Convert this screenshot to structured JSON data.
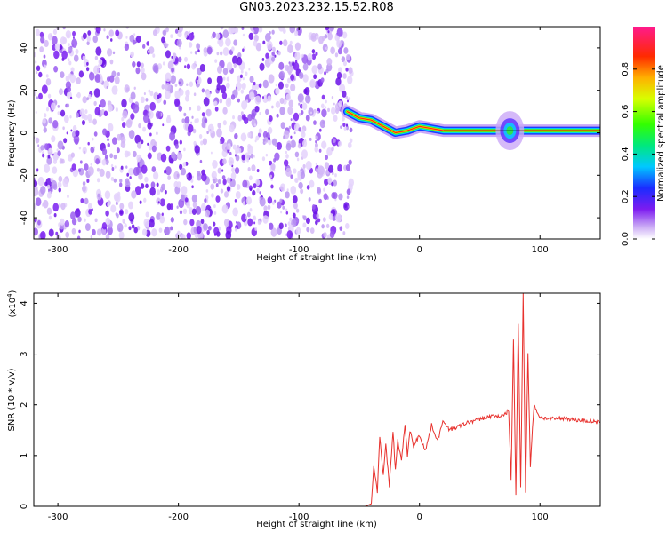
{
  "title": "GN03.2023.232.15.52.R08",
  "chart_data": [
    {
      "type": "heatmap",
      "xlabel": "Height of straight line (km)",
      "ylabel": "Frequency (Hz)",
      "xlim": [
        -320,
        150
      ],
      "ylim": [
        -50,
        50
      ],
      "x_ticks": [
        -300,
        -200,
        -100,
        0,
        100
      ],
      "y_ticks": [
        -40,
        -20,
        0,
        20,
        40
      ],
      "noise_region_x": [
        -320,
        -60
      ],
      "ridge": [
        {
          "x": -60,
          "y": 10
        },
        {
          "x": -50,
          "y": 7
        },
        {
          "x": -40,
          "y": 6
        },
        {
          "x": -30,
          "y": 3
        },
        {
          "x": -20,
          "y": 0
        },
        {
          "x": -10,
          "y": 1
        },
        {
          "x": 0,
          "y": 3
        },
        {
          "x": 10,
          "y": 2
        },
        {
          "x": 20,
          "y": 1
        },
        {
          "x": 40,
          "y": 1
        },
        {
          "x": 60,
          "y": 1
        },
        {
          "x": 70,
          "y": 1
        },
        {
          "x": 90,
          "y": 1
        },
        {
          "x": 120,
          "y": 1
        },
        {
          "x": 150,
          "y": 1
        }
      ],
      "colorbar": {
        "label": "Normalized spectral amplitude",
        "range": [
          0.0,
          1.0
        ],
        "ticks": [
          "0.0",
          "0.2",
          "0.4",
          "0.6",
          "0.8"
        ]
      }
    },
    {
      "type": "line",
      "xlabel": "Height of straight line (km)",
      "ylabel": "SNR (10 * v/v)",
      "scale_label": "(x10",
      "scale_exp": "4",
      "xlim": [
        -320,
        150
      ],
      "ylim": [
        0,
        4.2
      ],
      "x_ticks": [
        -300,
        -200,
        -100,
        0,
        100
      ],
      "y_ticks": [
        0,
        1,
        2,
        3,
        4
      ],
      "color": "#e8322e",
      "series": [
        {
          "x": [
            -320,
            -100,
            -45,
            -40,
            -38,
            -35,
            -33,
            -30,
            -28,
            -25,
            -22,
            -20,
            -18,
            -15,
            -12,
            -10,
            -8,
            -5,
            0,
            5,
            10,
            15,
            20,
            25,
            30,
            40,
            50,
            60,
            70,
            74,
            76,
            78,
            80,
            82,
            84,
            86,
            88,
            90,
            92,
            95,
            100,
            110,
            120,
            130,
            140,
            150
          ],
          "y": [
            0.0,
            0.0,
            0.0,
            0.05,
            0.8,
            0.3,
            1.4,
            0.6,
            1.2,
            0.4,
            1.5,
            0.7,
            1.3,
            0.9,
            1.6,
            1.0,
            1.5,
            1.2,
            1.4,
            1.1,
            1.6,
            1.3,
            1.7,
            1.5,
            1.55,
            1.65,
            1.72,
            1.78,
            1.78,
            1.9,
            0.5,
            3.3,
            0.2,
            3.6,
            0.4,
            4.2,
            0.3,
            3.0,
            0.8,
            2.0,
            1.75,
            1.72,
            1.74,
            1.7,
            1.68,
            1.65
          ]
        }
      ]
    }
  ]
}
